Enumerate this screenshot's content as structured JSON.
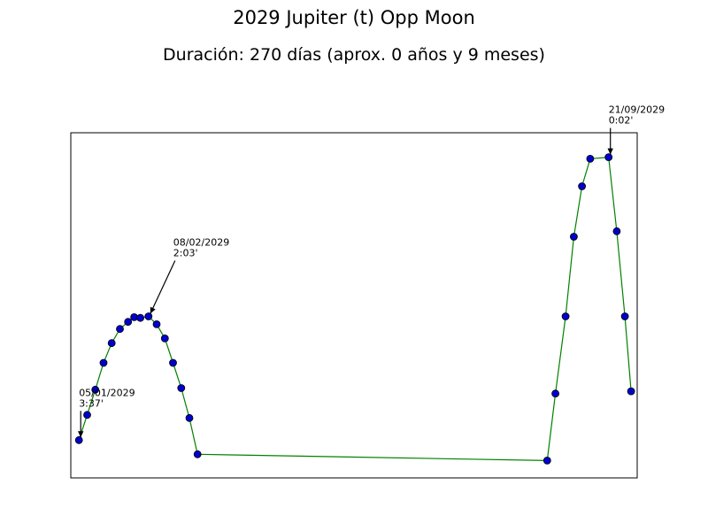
{
  "chart_data": {
    "type": "line",
    "title": "2029 Jupiter (t) Opp Moon",
    "subtitle": "Duración: 270 días (aprox. 0 años y 9 meses)",
    "xlabel": "",
    "ylabel": "",
    "grid": false,
    "legend": "none",
    "line_color": "#008000",
    "marker_color": "#0000cc",
    "series": [
      {
        "points": [
          {
            "x": "2029-01-05",
            "y": 3.62
          },
          {
            "x": "2029-01-09",
            "y": 3.3
          },
          {
            "x": "2029-01-13",
            "y": 2.98
          },
          {
            "x": "2029-01-17",
            "y": 2.64
          },
          {
            "x": "2029-01-21",
            "y": 2.39
          },
          {
            "x": "2029-01-25",
            "y": 2.21
          },
          {
            "x": "2029-01-29",
            "y": 2.12
          },
          {
            "x": "2029-02-01",
            "y": 2.06
          },
          {
            "x": "2029-02-04",
            "y": 2.07
          },
          {
            "x": "2029-02-08",
            "y": 2.05
          },
          {
            "x": "2029-02-12",
            "y": 2.15
          },
          {
            "x": "2029-02-16",
            "y": 2.33
          },
          {
            "x": "2029-02-20",
            "y": 2.64
          },
          {
            "x": "2029-02-24",
            "y": 2.96
          },
          {
            "x": "2029-02-28",
            "y": 3.34
          },
          {
            "x": "2029-03-04",
            "y": 3.8
          },
          {
            "x": "2029-08-22",
            "y": 3.88
          },
          {
            "x": "2029-08-26",
            "y": 3.03
          },
          {
            "x": "2029-08-31",
            "y": 2.05
          },
          {
            "x": "2029-09-04",
            "y": 1.04
          },
          {
            "x": "2029-09-08",
            "y": 0.4
          },
          {
            "x": "2029-09-12",
            "y": 0.05
          },
          {
            "x": "2029-09-21",
            "y": 0.03
          },
          {
            "x": "2029-09-25",
            "y": 0.97
          },
          {
            "x": "2029-09-29",
            "y": 2.05
          },
          {
            "x": "2029-10-02",
            "y": 3.0
          }
        ]
      }
    ],
    "xlim": [
      "2029-01-01",
      "2029-10-05"
    ],
    "ylim": [
      4.1,
      -0.28
    ],
    "annotations": [
      {
        "x": "2029-01-05",
        "y": 3.62,
        "date": "05/01/2029",
        "value": "3:37'",
        "position": "above"
      },
      {
        "x": "2029-02-08",
        "y": 2.05,
        "date": "08/02/2029",
        "value": "2:03'",
        "position": "above-right"
      },
      {
        "x": "2029-09-21",
        "y": 0.03,
        "date": "21/09/2029",
        "value": "0:02'",
        "position": "above-right"
      }
    ]
  }
}
